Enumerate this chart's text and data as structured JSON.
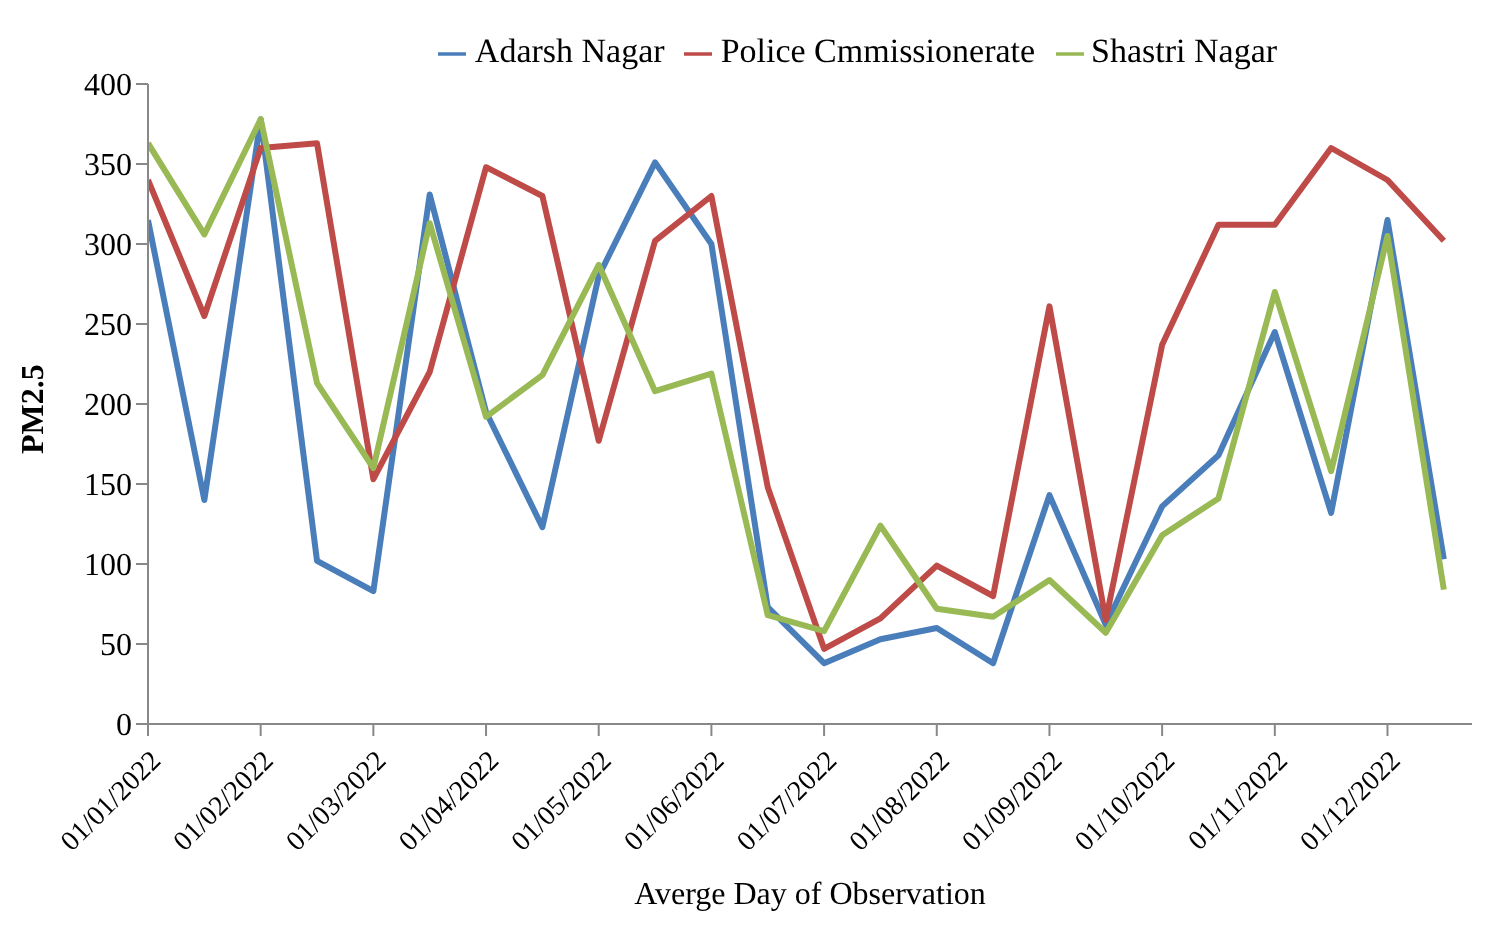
{
  "chart_data": {
    "type": "line",
    "xlabel": "Averge Day of  Observation",
    "ylabel": "PM2.5",
    "categories": [
      "01/01/2022",
      null,
      "01/02/2022",
      null,
      "01/03/2022",
      null,
      "01/04/2022",
      null,
      "01/05/2022",
      null,
      "01/06/2022",
      null,
      "01/07/2022",
      null,
      "01/08/2022",
      null,
      "01/09/2022",
      null,
      "01/10/2022",
      null,
      "01/11/2022",
      null,
      "01/12/2022",
      null
    ],
    "series": [
      {
        "name": "Adarsh Nagar",
        "color": "#4a7ebb",
        "values": [
          315,
          140,
          378,
          102,
          83,
          331,
          195,
          123,
          280,
          351,
          300,
          73,
          38,
          53,
          60,
          38,
          143,
          62,
          136,
          168,
          245,
          132,
          315,
          103
        ]
      },
      {
        "name": "Police Cmmissionerate",
        "color": "#be4b48",
        "values": [
          340,
          255,
          360,
          363,
          153,
          220,
          348,
          330,
          177,
          302,
          330,
          148,
          47,
          66,
          99,
          80,
          261,
          65,
          237,
          312,
          312,
          360,
          340,
          302
        ]
      },
      {
        "name": "Shastri Nagar",
        "color": "#98b954",
        "values": [
          363,
          306,
          378,
          213,
          160,
          313,
          192,
          218,
          287,
          208,
          219,
          68,
          58,
          124,
          72,
          67,
          90,
          57,
          118,
          141,
          270,
          158,
          305,
          84
        ]
      }
    ],
    "ylim": [
      0,
      400
    ],
    "yticks": [
      0,
      50,
      100,
      150,
      200,
      250,
      300,
      350,
      400
    ],
    "grid": false,
    "legend": "top",
    "marker": "none",
    "line_style": "solid"
  }
}
